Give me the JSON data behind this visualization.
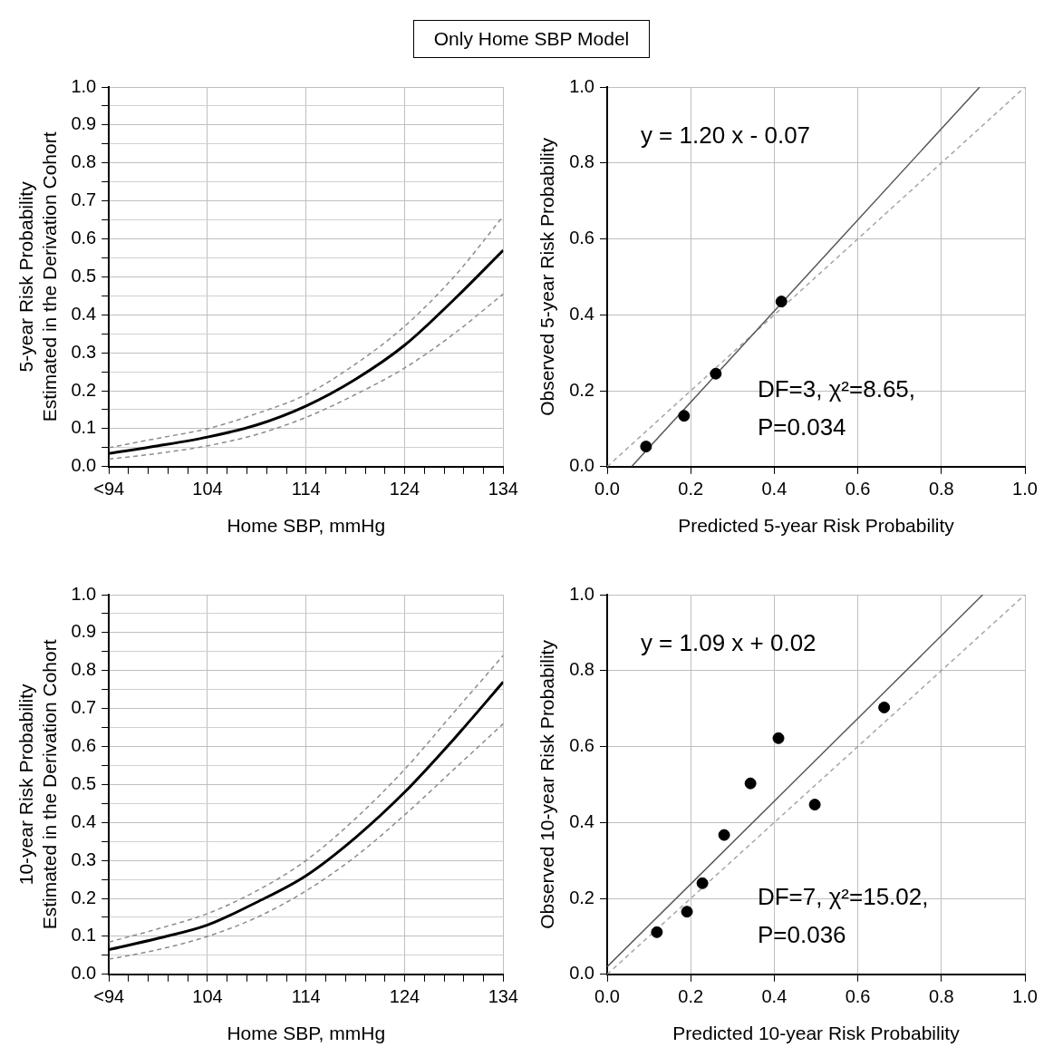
{
  "chart_data": [
    {
      "type": "line",
      "title": "Only Home SBP Model",
      "xlabel": "Home SBP, mmHg",
      "ylabel": "5-year Risk Probability\nEstimated in the Derivation Cohort",
      "x": [
        94,
        99,
        104,
        109,
        114,
        119,
        124,
        129,
        134
      ],
      "series": [
        {
          "color": "#000000",
          "values": [
            0.035,
            0.055,
            0.078,
            0.11,
            0.16,
            0.23,
            0.32,
            0.44,
            0.57
          ]
        },
        {
          "color": "#8c8c8c",
          "line_style": "dashed",
          "values": [
            0.02,
            0.035,
            0.055,
            0.085,
            0.13,
            0.19,
            0.26,
            0.35,
            0.455
          ]
        },
        {
          "color": "#8c8c8c",
          "line_style": "dashed",
          "values": [
            0.05,
            0.075,
            0.1,
            0.14,
            0.19,
            0.27,
            0.37,
            0.5,
            0.66
          ]
        }
      ],
      "xlim": [
        94,
        134
      ],
      "xticks": [
        {
          "value": 94,
          "label": "<94"
        },
        {
          "value": 96,
          "label": null
        },
        {
          "value": 98,
          "label": null
        },
        {
          "value": 100,
          "label": null
        },
        {
          "value": 102,
          "label": null
        },
        104,
        {
          "value": 106,
          "label": null
        },
        {
          "value": 108,
          "label": null
        },
        {
          "value": 110,
          "label": null
        },
        {
          "value": 112,
          "label": null
        },
        114,
        {
          "value": 116,
          "label": null
        },
        {
          "value": 118,
          "label": null
        },
        {
          "value": 120,
          "label": null
        },
        {
          "value": 122,
          "label": null
        },
        124,
        {
          "value": 126,
          "label": null
        },
        {
          "value": 128,
          "label": null
        },
        {
          "value": 130,
          "label": null
        },
        {
          "value": 132,
          "label": null
        },
        134
      ],
      "ylim": [
        0,
        1
      ],
      "yticks": [
        {
          "value": 0,
          "label": "0.0"
        },
        {
          "value": 0.05,
          "label": null
        },
        0.1,
        {
          "value": 0.15,
          "label": null
        },
        0.2,
        {
          "value": 0.25,
          "label": null
        },
        0.3,
        {
          "value": 0.35,
          "label": null
        },
        0.4,
        {
          "value": 0.45,
          "label": null
        },
        0.5,
        {
          "value": 0.55,
          "label": null
        },
        0.6,
        {
          "value": 0.65,
          "label": null
        },
        0.7,
        {
          "value": 0.75,
          "label": null
        },
        0.8,
        {
          "value": 0.85,
          "label": null
        },
        0.9,
        {
          "value": 0.95,
          "label": null
        },
        {
          "value": 1,
          "label": "1.0"
        }
      ],
      "grid": true,
      "marker": "none",
      "line_style": "solid"
    },
    {
      "type": "scatter",
      "xlabel": "Predicted 5-year Risk Probability",
      "ylabel": "Observed 5-year Risk Probability",
      "series": [
        {
          "type": "scatter",
          "marker": "circle",
          "color": "#000000",
          "x": [
            0.093,
            0.184,
            0.26,
            0.417
          ],
          "values": [
            0.053,
            0.134,
            0.245,
            0.435
          ]
        },
        {
          "type": "line",
          "marker": "none",
          "color": "#595959",
          "x": [
            0.0583,
            0.8917
          ],
          "values": [
            0,
            1
          ]
        },
        {
          "type": "line",
          "marker": "none",
          "color": "#a6a6a6",
          "line_style": "dashed",
          "x": [
            0,
            1
          ],
          "values": [
            0,
            1
          ]
        }
      ],
      "xlim": [
        0,
        1
      ],
      "xticks": [
        {
          "value": 0,
          "label": "0.0"
        },
        0.2,
        0.4,
        0.6,
        0.8,
        {
          "value": 1,
          "label": "1.0"
        }
      ],
      "ylim": [
        0,
        1
      ],
      "yticks": [
        {
          "value": 0,
          "label": "0.0"
        },
        0.2,
        0.4,
        0.6,
        0.8,
        {
          "value": 1,
          "label": "1.0"
        }
      ],
      "annotations": [
        "y = 1.20 x - 0.07",
        "DF=3, χ²=8.65,",
        "P=0.034"
      ],
      "grid": true
    },
    {
      "type": "line",
      "xlabel": "Home SBP, mmHg",
      "ylabel": "10-year Risk Probability\nEstimated in the Derivation Cohort",
      "x": [
        94,
        99,
        104,
        109,
        114,
        119,
        124,
        129,
        134
      ],
      "series": [
        {
          "color": "#000000",
          "values": [
            0.065,
            0.095,
            0.13,
            0.19,
            0.26,
            0.36,
            0.48,
            0.62,
            0.77
          ]
        },
        {
          "color": "#8c8c8c",
          "line_style": "dashed",
          "values": [
            0.04,
            0.065,
            0.1,
            0.15,
            0.22,
            0.31,
            0.42,
            0.54,
            0.66
          ]
        },
        {
          "color": "#8c8c8c",
          "line_style": "dashed",
          "values": [
            0.085,
            0.12,
            0.16,
            0.22,
            0.3,
            0.41,
            0.54,
            0.69,
            0.84
          ]
        }
      ],
      "xlim": [
        94,
        134
      ],
      "xticks": [
        {
          "value": 94,
          "label": "<94"
        },
        {
          "value": 96,
          "label": null
        },
        {
          "value": 98,
          "label": null
        },
        {
          "value": 100,
          "label": null
        },
        {
          "value": 102,
          "label": null
        },
        104,
        {
          "value": 106,
          "label": null
        },
        {
          "value": 108,
          "label": null
        },
        {
          "value": 110,
          "label": null
        },
        {
          "value": 112,
          "label": null
        },
        114,
        {
          "value": 116,
          "label": null
        },
        {
          "value": 118,
          "label": null
        },
        {
          "value": 120,
          "label": null
        },
        {
          "value": 122,
          "label": null
        },
        124,
        {
          "value": 126,
          "label": null
        },
        {
          "value": 128,
          "label": null
        },
        {
          "value": 130,
          "label": null
        },
        {
          "value": 132,
          "label": null
        },
        134
      ],
      "ylim": [
        0,
        1
      ],
      "yticks": [
        {
          "value": 0,
          "label": "0.0"
        },
        {
          "value": 0.05,
          "label": null
        },
        0.1,
        {
          "value": 0.15,
          "label": null
        },
        0.2,
        {
          "value": 0.25,
          "label": null
        },
        0.3,
        {
          "value": 0.35,
          "label": null
        },
        0.4,
        {
          "value": 0.45,
          "label": null
        },
        0.5,
        {
          "value": 0.55,
          "label": null
        },
        0.6,
        {
          "value": 0.65,
          "label": null
        },
        0.7,
        {
          "value": 0.75,
          "label": null
        },
        0.8,
        {
          "value": 0.85,
          "label": null
        },
        0.9,
        {
          "value": 0.95,
          "label": null
        },
        {
          "value": 1,
          "label": "1.0"
        }
      ],
      "grid": true,
      "marker": "none",
      "line_style": "solid"
    },
    {
      "type": "scatter",
      "xlabel": "Predicted 10-year Risk Probability",
      "ylabel": "Observed 10-year Risk Probability",
      "series": [
        {
          "type": "scatter",
          "marker": "circle",
          "color": "#000000",
          "x": [
            0.119,
            0.191,
            0.228,
            0.28,
            0.343,
            0.41,
            0.497,
            0.663
          ],
          "values": [
            0.111,
            0.165,
            0.24,
            0.367,
            0.503,
            0.622,
            0.447,
            0.703
          ]
        },
        {
          "type": "line",
          "marker": "none",
          "color": "#595959",
          "x": [
            0,
            0.8991
          ],
          "values": [
            0.02,
            1
          ]
        },
        {
          "type": "line",
          "marker": "none",
          "color": "#a6a6a6",
          "line_style": "dashed",
          "x": [
            0,
            1
          ],
          "values": [
            0,
            1
          ]
        }
      ],
      "xlim": [
        0,
        1
      ],
      "xticks": [
        {
          "value": 0,
          "label": "0.0"
        },
        0.2,
        0.4,
        0.6,
        0.8,
        {
          "value": 1,
          "label": "1.0"
        }
      ],
      "ylim": [
        0,
        1
      ],
      "yticks": [
        {
          "value": 0,
          "label": "0.0"
        },
        0.2,
        0.4,
        0.6,
        0.8,
        {
          "value": 1,
          "label": "1.0"
        }
      ],
      "annotations": [
        "y = 1.09 x + 0.02",
        "DF=7, χ²=15.02,",
        "P=0.036"
      ],
      "grid": true
    }
  ]
}
